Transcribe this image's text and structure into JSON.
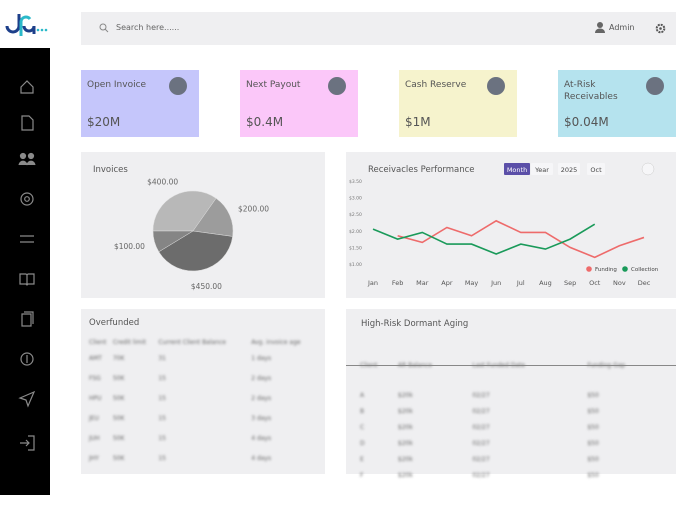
{
  "header": {
    "search_placeholder": "Search here......",
    "user": "Admin"
  },
  "cards": [
    {
      "title": "Open Invoice",
      "value": "$20M",
      "color": "#c5c6fb"
    },
    {
      "title": "Next Payout",
      "value": "$0.4M",
      "color": "#fbc7f9"
    },
    {
      "title": "Cash Reserve",
      "value": "$1M",
      "color": "#f6f3cd"
    },
    {
      "title": "At-Risk Receivables",
      "value": "$0.04M",
      "color": "#b5e3ee"
    }
  ],
  "invoices": {
    "type": "pie",
    "title": "Invoices",
    "values": [
      400,
      200,
      450,
      100
    ],
    "value_labels": [
      "$400.00",
      "$200.00",
      "$450.00",
      "$100.00"
    ],
    "colors": [
      "#b8b8b8",
      "#9c9c9c",
      "#6c6c6c",
      "#858585"
    ]
  },
  "performance": {
    "type": "line",
    "title": "Receivacles Performance",
    "buttons": [
      "Month",
      "Year",
      "2025",
      "Oct"
    ],
    "categories": [
      "Jan",
      "Feb",
      "Mar",
      "Apr",
      "May",
      "Jun",
      "Jul",
      "Aug",
      "Sep",
      "Oct",
      "Nov",
      "Dec"
    ],
    "ylim": [
      1,
      3.5
    ],
    "yticks": [
      {
        "value": 1,
        "label": "$1.00"
      },
      {
        "value": 1.5,
        "label": "$1.50"
      },
      {
        "value": 2,
        "label": "$2.00"
      },
      {
        "value": 2.5,
        "label": "$2.50"
      },
      {
        "value": 3,
        "label": "$3.00"
      },
      {
        "value": 3.5,
        "label": "$3.50"
      }
    ],
    "series": [
      {
        "name": "Funding",
        "color": "#ee6b6b",
        "values": [
          null,
          1.85,
          1.65,
          2.1,
          1.85,
          2.3,
          1.95,
          1.95,
          1.5,
          1.2,
          1.55,
          1.8
        ]
      },
      {
        "name": "Collection",
        "color": "#1a9a5a",
        "values": [
          2.05,
          1.75,
          1.95,
          1.6,
          1.6,
          1.3,
          1.6,
          1.45,
          1.75,
          2.2,
          null,
          null
        ]
      }
    ]
  },
  "overfunded": {
    "title": "Overfunded",
    "headers": [
      "Client",
      "Credit limit",
      "Current Client Balance",
      "Avg. invoice age"
    ],
    "rows": [
      [
        "AMT",
        "70K",
        "31",
        "1 days"
      ],
      [
        "FSG",
        "50K",
        "15",
        "2 days"
      ],
      [
        "HPU",
        "50K",
        "15",
        "2 days"
      ],
      [
        "JEU",
        "50K",
        "15",
        "3 days"
      ],
      [
        "JUH",
        "50K",
        "15",
        "4 days"
      ],
      [
        "JHY",
        "50K",
        "15",
        "4 days"
      ]
    ]
  },
  "dormant": {
    "title": "High-Risk Dormant Aging",
    "headers": [
      "Client",
      "AR Balance",
      "Last Funded Date",
      "Funding Gap"
    ],
    "rows": [
      [
        "A",
        "$20k",
        "02/27",
        "$50"
      ],
      [
        "B",
        "$20k",
        "02/27",
        "$50"
      ],
      [
        "C",
        "$20k",
        "02/27",
        "$50"
      ],
      [
        "D",
        "$20k",
        "02/27",
        "$50"
      ],
      [
        "E",
        "$20k",
        "02/27",
        "$50"
      ],
      [
        "F",
        "$20k",
        "02/27",
        "$50"
      ]
    ]
  }
}
